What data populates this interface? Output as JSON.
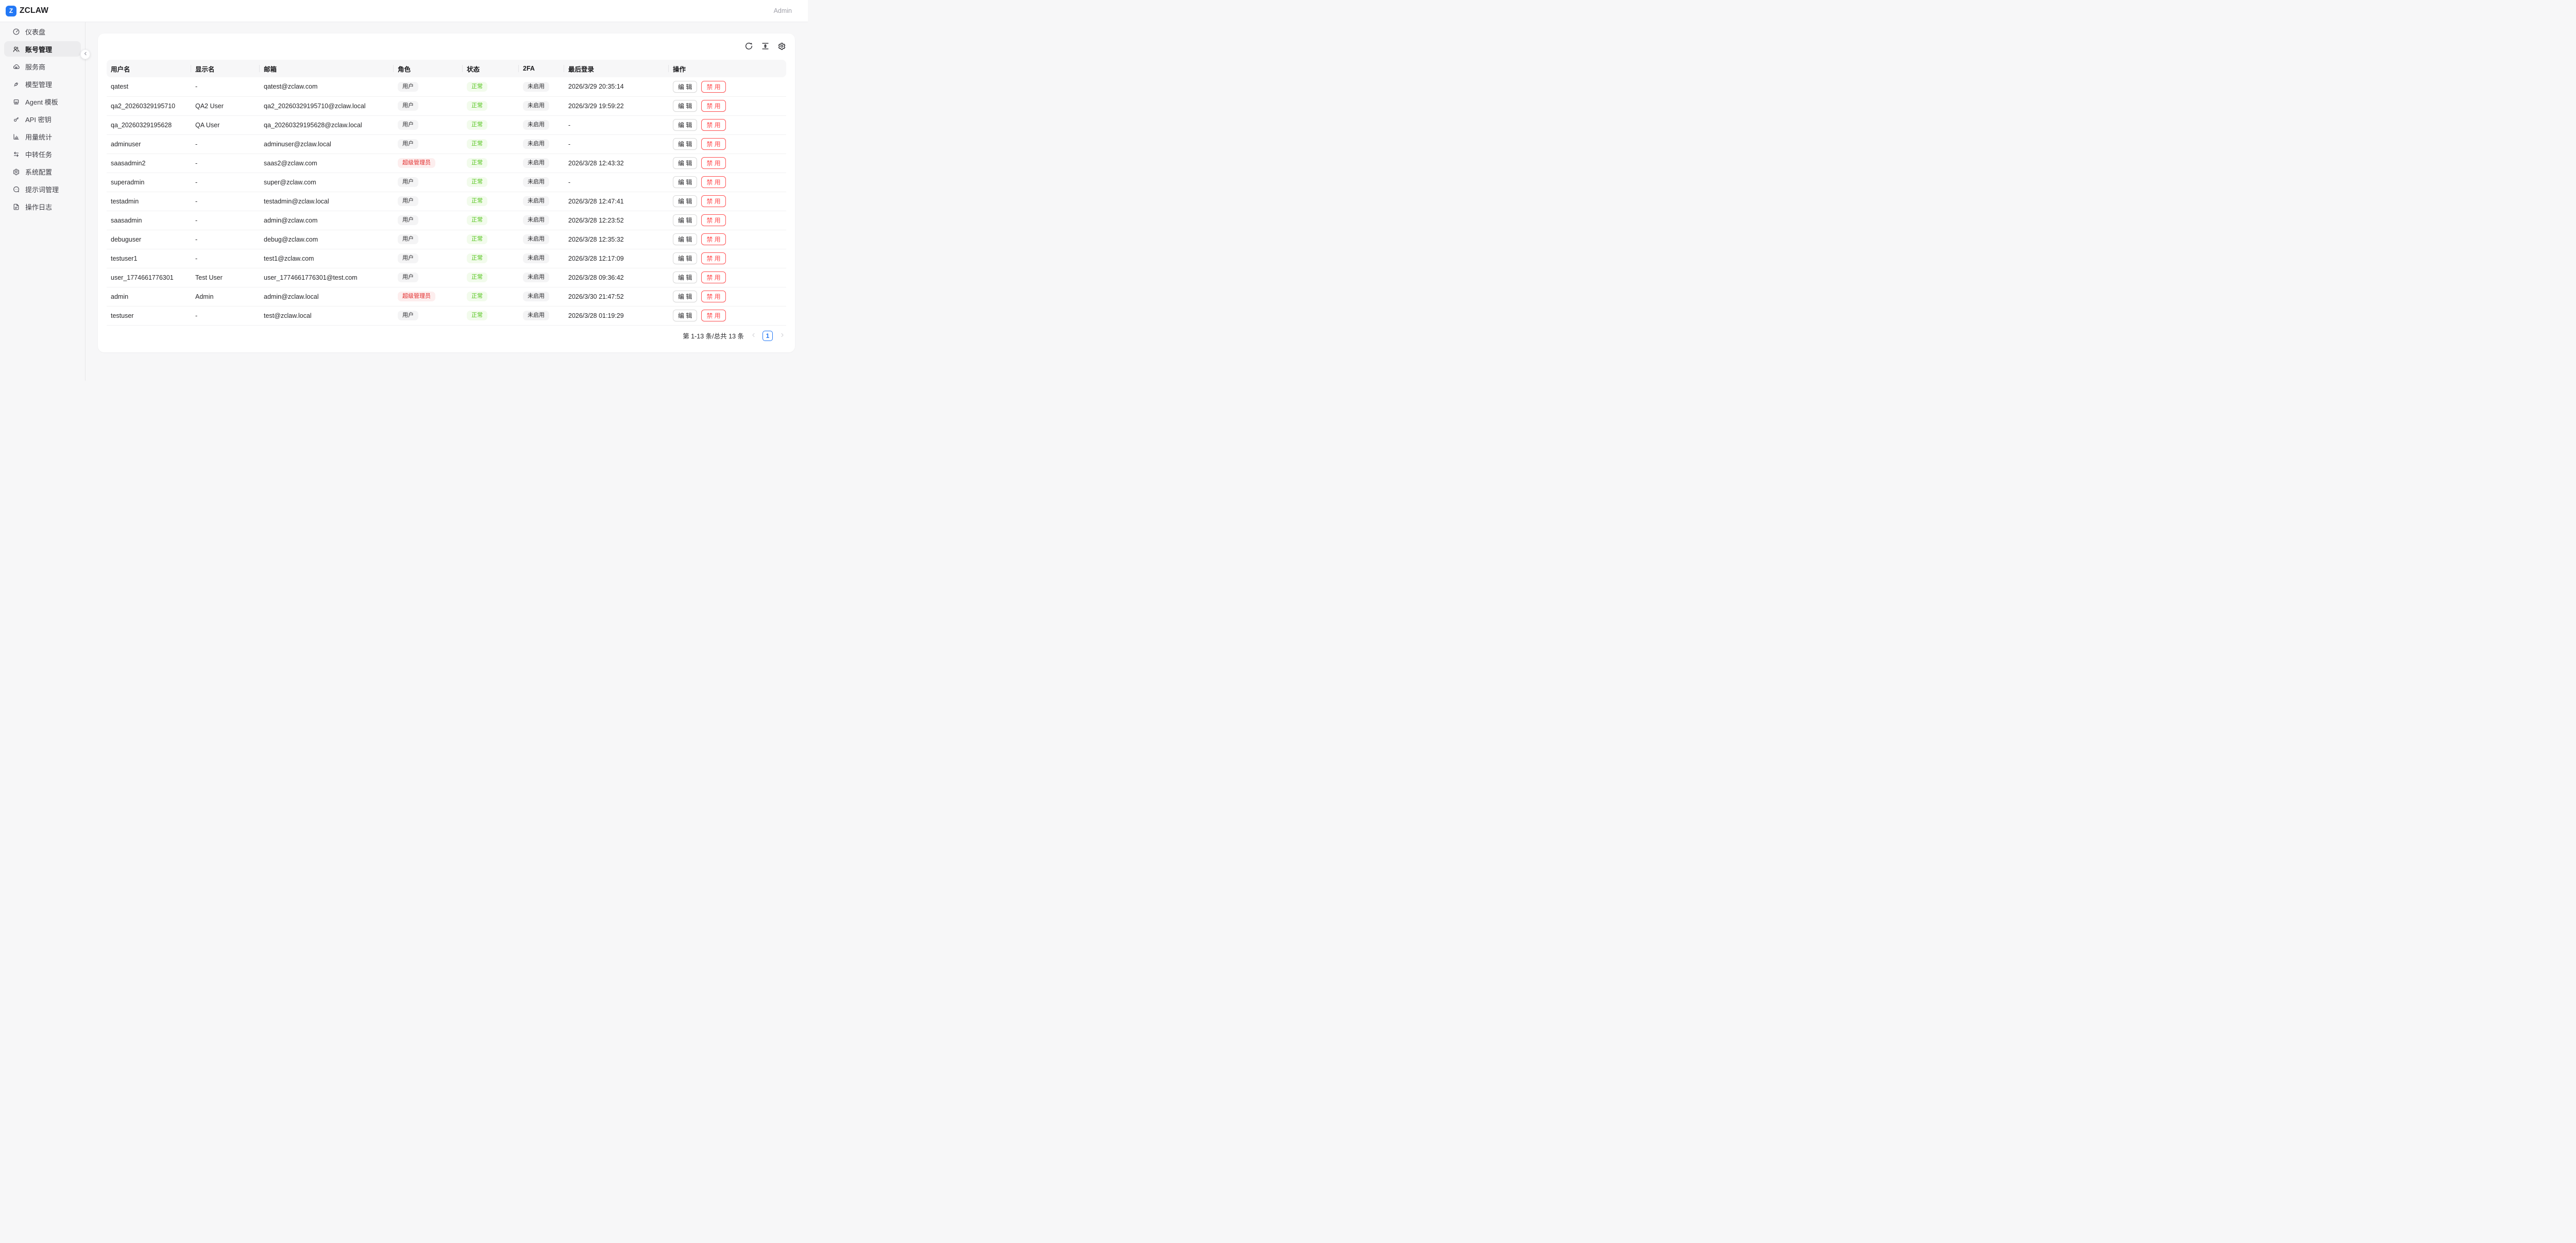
{
  "header": {
    "logo_letter": "Z",
    "brand": "ZCLAW",
    "user_label": "Admin"
  },
  "sidebar": {
    "items": [
      {
        "id": "dashboard",
        "label": "仪表盘",
        "icon": "dashboard-icon",
        "active": false
      },
      {
        "id": "accounts",
        "label": "账号管理",
        "icon": "accounts-icon",
        "active": true
      },
      {
        "id": "providers",
        "label": "服务商",
        "icon": "cloud-provider-icon",
        "active": false
      },
      {
        "id": "models",
        "label": "模型管理",
        "icon": "plug-icon",
        "active": false
      },
      {
        "id": "agent-template",
        "label": "Agent 模板",
        "icon": "robot-icon",
        "active": false
      },
      {
        "id": "api-keys",
        "label": "API 密钥",
        "icon": "key-icon",
        "active": false
      },
      {
        "id": "usage-stats",
        "label": "用量统计",
        "icon": "bar-chart-icon",
        "active": false
      },
      {
        "id": "relay-tasks",
        "label": "中转任务",
        "icon": "swap-arrows-icon",
        "active": false
      },
      {
        "id": "system-config",
        "label": "系统配置",
        "icon": "gear-icon",
        "active": false
      },
      {
        "id": "prompts",
        "label": "提示词管理",
        "icon": "message-dots-icon",
        "active": false
      },
      {
        "id": "operation-logs",
        "label": "操作日志",
        "icon": "file-text-icon",
        "active": false
      }
    ]
  },
  "toolbar": {
    "buttons": [
      {
        "name": "refresh",
        "icon": "refresh-icon"
      },
      {
        "name": "density",
        "icon": "column-height-icon"
      },
      {
        "name": "table-settings",
        "icon": "settings-icon"
      }
    ]
  },
  "table": {
    "columns": [
      "用户名",
      "显示名",
      "邮箱",
      "角色",
      "状态",
      "2FA",
      "最后登录",
      "操作"
    ],
    "actions": {
      "edit_label": "编 辑",
      "disable_label": "禁 用"
    },
    "rows": [
      {
        "username": "qatest",
        "display_name": "-",
        "email": "qatest@zclaw.com",
        "role": {
          "label": "用户",
          "type": "user"
        },
        "status": {
          "label": "正常",
          "type": "success"
        },
        "twofa": {
          "label": "未启用",
          "type": "default"
        },
        "last_login": "2026/3/29 20:35:14"
      },
      {
        "username": "qa2_20260329195710",
        "display_name": "QA2 User",
        "email": "qa2_20260329195710@zclaw.local",
        "role": {
          "label": "用户",
          "type": "user"
        },
        "status": {
          "label": "正常",
          "type": "success"
        },
        "twofa": {
          "label": "未启用",
          "type": "default"
        },
        "last_login": "2026/3/29 19:59:22"
      },
      {
        "username": "qa_20260329195628",
        "display_name": "QA User",
        "email": "qa_20260329195628@zclaw.local",
        "role": {
          "label": "用户",
          "type": "user"
        },
        "status": {
          "label": "正常",
          "type": "success"
        },
        "twofa": {
          "label": "未启用",
          "type": "default"
        },
        "last_login": "-"
      },
      {
        "username": "adminuser",
        "display_name": "-",
        "email": "adminuser@zclaw.local",
        "role": {
          "label": "用户",
          "type": "user"
        },
        "status": {
          "label": "正常",
          "type": "success"
        },
        "twofa": {
          "label": "未启用",
          "type": "default"
        },
        "last_login": "-"
      },
      {
        "username": "saasadmin2",
        "display_name": "-",
        "email": "saas2@zclaw.com",
        "role": {
          "label": "超级管理员",
          "type": "superadmin"
        },
        "status": {
          "label": "正常",
          "type": "success"
        },
        "twofa": {
          "label": "未启用",
          "type": "default"
        },
        "last_login": "2026/3/28 12:43:32"
      },
      {
        "username": "superadmin",
        "display_name": "-",
        "email": "super@zclaw.com",
        "role": {
          "label": "用户",
          "type": "user"
        },
        "status": {
          "label": "正常",
          "type": "success"
        },
        "twofa": {
          "label": "未启用",
          "type": "default"
        },
        "last_login": "-"
      },
      {
        "username": "testadmin",
        "display_name": "-",
        "email": "testadmin@zclaw.local",
        "role": {
          "label": "用户",
          "type": "user"
        },
        "status": {
          "label": "正常",
          "type": "success"
        },
        "twofa": {
          "label": "未启用",
          "type": "default"
        },
        "last_login": "2026/3/28 12:47:41"
      },
      {
        "username": "saasadmin",
        "display_name": "-",
        "email": "admin@zclaw.com",
        "role": {
          "label": "用户",
          "type": "user"
        },
        "status": {
          "label": "正常",
          "type": "success"
        },
        "twofa": {
          "label": "未启用",
          "type": "default"
        },
        "last_login": "2026/3/28 12:23:52"
      },
      {
        "username": "debuguser",
        "display_name": "-",
        "email": "debug@zclaw.com",
        "role": {
          "label": "用户",
          "type": "user"
        },
        "status": {
          "label": "正常",
          "type": "success"
        },
        "twofa": {
          "label": "未启用",
          "type": "default"
        },
        "last_login": "2026/3/28 12:35:32"
      },
      {
        "username": "testuser1",
        "display_name": "-",
        "email": "test1@zclaw.com",
        "role": {
          "label": "用户",
          "type": "user"
        },
        "status": {
          "label": "正常",
          "type": "success"
        },
        "twofa": {
          "label": "未启用",
          "type": "default"
        },
        "last_login": "2026/3/28 12:17:09"
      },
      {
        "username": "user_1774661776301",
        "display_name": "Test User",
        "email": "user_1774661776301@test.com",
        "role": {
          "label": "用户",
          "type": "user"
        },
        "status": {
          "label": "正常",
          "type": "success"
        },
        "twofa": {
          "label": "未启用",
          "type": "default"
        },
        "last_login": "2026/3/28 09:36:42"
      },
      {
        "username": "admin",
        "display_name": "Admin",
        "email": "admin@zclaw.local",
        "role": {
          "label": "超级管理员",
          "type": "superadmin"
        },
        "status": {
          "label": "正常",
          "type": "success"
        },
        "twofa": {
          "label": "未启用",
          "type": "default"
        },
        "last_login": "2026/3/30 21:47:52"
      },
      {
        "username": "testuser",
        "display_name": "-",
        "email": "test@zclaw.local",
        "role": {
          "label": "用户",
          "type": "user"
        },
        "status": {
          "label": "正常",
          "type": "success"
        },
        "twofa": {
          "label": "未启用",
          "type": "default"
        },
        "last_login": "2026/3/28 01:19:29"
      }
    ]
  },
  "pagination": {
    "summary": "第 1-13 条/总共 13 条",
    "current_page": "1"
  },
  "colors": {
    "accent_blue": "#2378f5",
    "danger_red": "#ff4d4f",
    "success_green": "#52c41a",
    "superadmin_red": "#e22c2c",
    "page_background": "#f7f7f8"
  }
}
